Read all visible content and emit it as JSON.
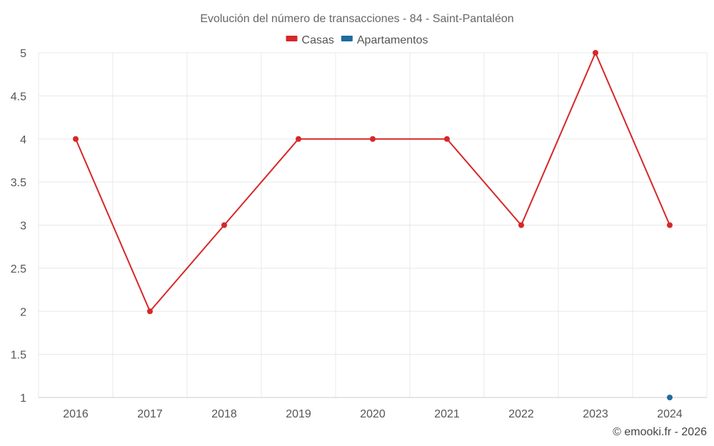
{
  "chart_data": {
    "type": "line",
    "title": "Evolución del número de transacciones - 84 - Saint-Pantaléon",
    "x": [
      "2016",
      "2017",
      "2018",
      "2019",
      "2020",
      "2021",
      "2022",
      "2023",
      "2024"
    ],
    "series": [
      {
        "name": "Casas",
        "color": "#d62728",
        "values": [
          4,
          2,
          3,
          4,
          4,
          4,
          3,
          5,
          3
        ]
      },
      {
        "name": "Apartamentos",
        "color": "#1f6c9e",
        "values": [
          null,
          null,
          null,
          null,
          null,
          null,
          null,
          null,
          1
        ]
      }
    ],
    "ylim": [
      1,
      5
    ],
    "yticks": [
      "1",
      "1.5",
      "2",
      "2.5",
      "3",
      "3.5",
      "4",
      "4.5",
      "5"
    ],
    "grid": true,
    "legend": "top-center",
    "xlabel": "",
    "ylabel": ""
  },
  "credit": "© emooki.fr - 2026"
}
